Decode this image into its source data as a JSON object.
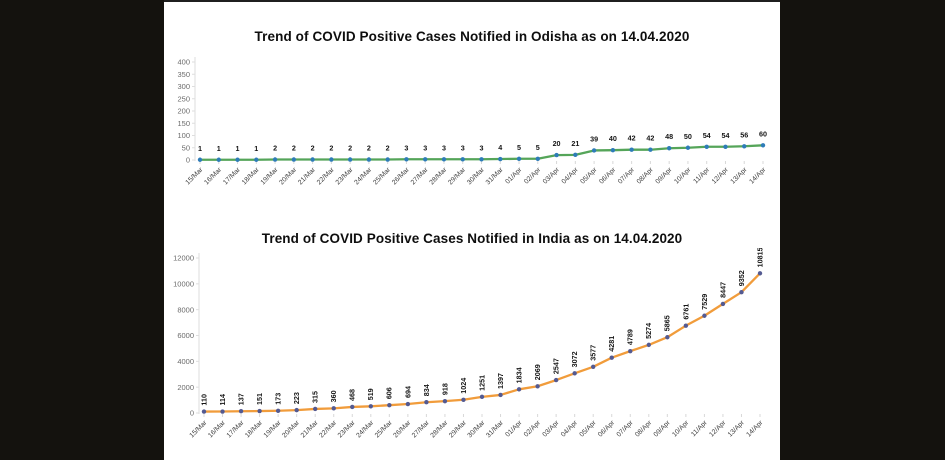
{
  "slide": {
    "background_color": "#ffffff",
    "letterbox_color": "#14120e"
  },
  "chart_data": [
    {
      "type": "line",
      "title": "Trend of COVID Positive Cases Notified in Odisha as on 14.04.2020",
      "categories": [
        "15/Mar",
        "16/Mar",
        "17/Mar",
        "18/Mar",
        "19/Mar",
        "20/Mar",
        "21/Mar",
        "22/Mar",
        "23/Mar",
        "24/Mar",
        "25/Mar",
        "26/Mar",
        "27/Mar",
        "28/Mar",
        "29/Mar",
        "30/Mar",
        "31/Mar",
        "01/Apr",
        "02/Apr",
        "03/Apr",
        "04/Apr",
        "05/Apr",
        "06/Apr",
        "07/Apr",
        "08/Apr",
        "09/Apr",
        "10/Apr",
        "11/Apr",
        "12/Apr",
        "13/Apr",
        "14/Apr"
      ],
      "values": [
        1,
        1,
        1,
        1,
        2,
        2,
        2,
        2,
        2,
        2,
        2,
        3,
        3,
        3,
        3,
        3,
        4,
        5,
        5,
        20,
        21,
        39,
        40,
        42,
        42,
        48,
        50,
        54,
        54,
        56,
        60
      ],
      "ylim": [
        0,
        400
      ],
      "yticks": [
        400,
        350,
        300,
        250,
        200,
        150,
        100,
        50,
        0
      ],
      "xlabel": "",
      "ylabel": "",
      "grid": false,
      "legend": "none",
      "data_labels": true,
      "label_orientation": "horizontal",
      "line_color": "#55a559",
      "marker_color": "#2e7cb8"
    },
    {
      "type": "line",
      "title": "Trend of COVID Positive Cases Notified in India as on 14.04.2020",
      "categories": [
        "15/Mar",
        "16/Mar",
        "17/Mar",
        "18/Mar",
        "19/Mar",
        "20/Mar",
        "21/Mar",
        "22/Mar",
        "23/Mar",
        "24/Mar",
        "25/Mar",
        "26/Mar",
        "27/Mar",
        "28/Mar",
        "29/Mar",
        "30/Mar",
        "31/Mar",
        "01/Apr",
        "02/Apr",
        "03/Apr",
        "04/Apr",
        "05/Apr",
        "06/Apr",
        "07/Apr",
        "08/Apr",
        "09/Apr",
        "10/Apr",
        "11/Apr",
        "12/Apr",
        "13/Apr",
        "14/Apr"
      ],
      "values": [
        110,
        114,
        137,
        151,
        173,
        223,
        315,
        360,
        468,
        519,
        606,
        694,
        834,
        918,
        1024,
        1251,
        1397,
        1834,
        2069,
        2547,
        3072,
        3577,
        4281,
        4789,
        5274,
        5865,
        6761,
        7529,
        8447,
        9352,
        10815
      ],
      "ylim": [
        0,
        12000
      ],
      "yticks": [
        12000,
        10000,
        8000,
        6000,
        4000,
        2000,
        0
      ],
      "xlabel": "",
      "ylabel": "",
      "grid": false,
      "legend": "none",
      "data_labels": true,
      "label_orientation": "vertical",
      "line_color": "#f19c3b",
      "marker_color": "#545a91"
    }
  ]
}
